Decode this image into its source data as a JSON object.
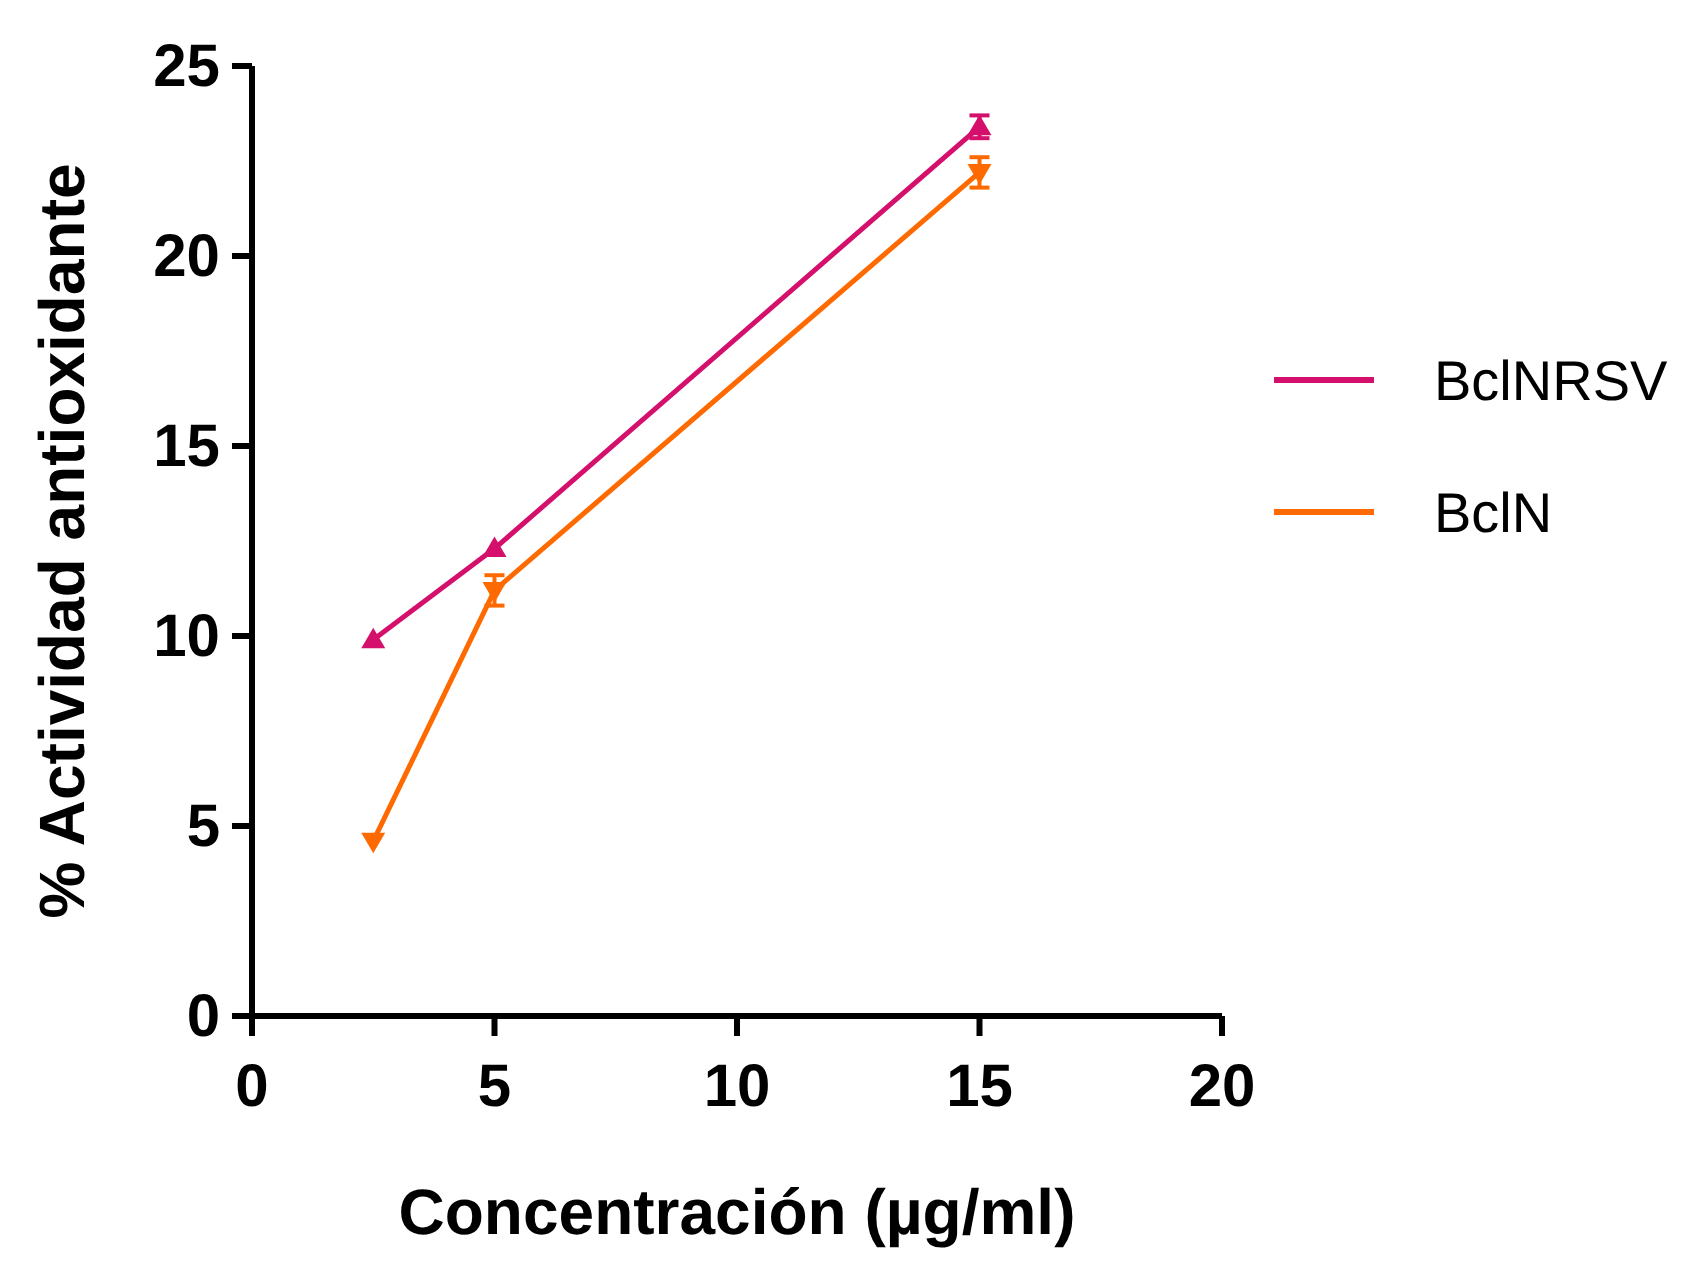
{
  "chart_data": {
    "type": "line",
    "xlabel": "Concentración (µg/ml)",
    "ylabel": "% Actividad antioxidante",
    "xlim": [
      0,
      20
    ],
    "xticks": [
      0,
      5,
      10,
      15,
      20
    ],
    "ylim": [
      0,
      25
    ],
    "yticks": [
      0,
      5,
      10,
      15,
      20,
      25
    ],
    "grid": false,
    "legend": "right",
    "x": [
      2.5,
      5,
      15
    ],
    "series": [
      {
        "name": "BclNRSV",
        "color": "#d4106c",
        "marker": "triangle",
        "values": [
          9.9,
          12.3,
          23.4
        ],
        "errors": [
          null,
          null,
          0.3
        ]
      },
      {
        "name": "BclN",
        "color": "#ff6a00",
        "marker": "triangle-down",
        "values": [
          4.6,
          11.2,
          22.2
        ],
        "errors": [
          null,
          0.4,
          0.4
        ]
      }
    ]
  }
}
